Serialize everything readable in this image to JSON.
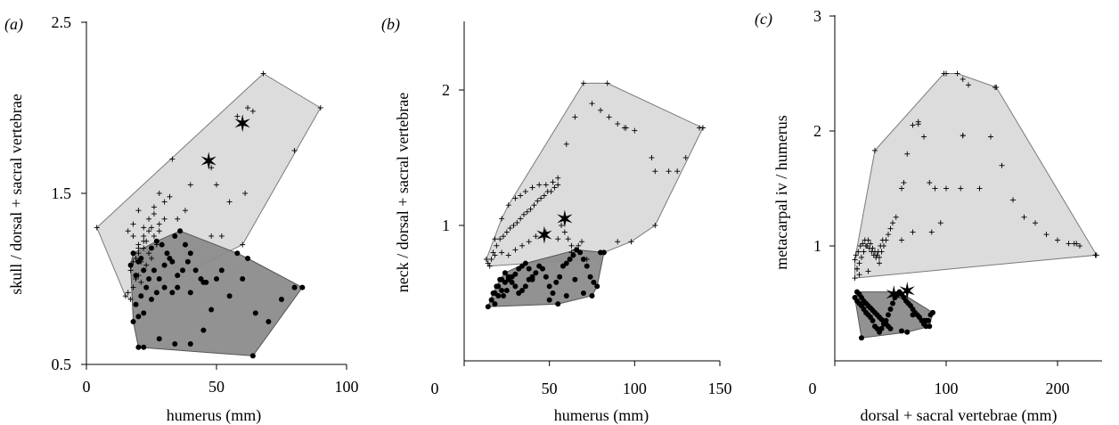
{
  "chart_data": [
    {
      "type": "scatter",
      "panel": "(a)",
      "xlabel": "humerus (mm)",
      "ylabel": "skull / dorsal + sacral vertebrae",
      "xlim": [
        0,
        100
      ],
      "ylim": [
        0.5,
        2.5
      ],
      "xticks": [
        0,
        50,
        100
      ],
      "yticks": [
        0.5,
        1.5,
        2.5
      ],
      "xtick_labels": [
        "0",
        "50",
        "100"
      ],
      "ytick_labels": [
        "0.5",
        "1.5",
        "2.5"
      ],
      "series": [
        {
          "marker": "plus",
          "color": "#000000",
          "hull_color": "#dcdcdc",
          "x": [
            4,
            68,
            90,
            80,
            61,
            60,
            52,
            48,
            40,
            33,
            20,
            18,
            16,
            18,
            20,
            22,
            24,
            26,
            28,
            22,
            24,
            26,
            30,
            32,
            28,
            26,
            22,
            20,
            18,
            17,
            19,
            21,
            23,
            25,
            27,
            24,
            22,
            20,
            18,
            16,
            15,
            17,
            19,
            21,
            23,
            20,
            22,
            25,
            28,
            30,
            35,
            38,
            55,
            58,
            62,
            64,
            48,
            50
          ],
          "y": [
            1.3,
            2.2,
            2.0,
            1.75,
            1.5,
            1.2,
            1.25,
            1.65,
            1.55,
            1.7,
            1.4,
            1.32,
            1.28,
            1.25,
            1.2,
            1.3,
            1.35,
            1.42,
            1.5,
            1.22,
            1.28,
            1.38,
            1.45,
            1.48,
            1.32,
            1.25,
            1.18,
            1.15,
            1.1,
            1.05,
            1.0,
            0.98,
            1.08,
            1.12,
            1.2,
            1.15,
            1.05,
            1.02,
            0.95,
            0.92,
            0.9,
            0.88,
            1.12,
            1.1,
            1.22,
            1.18,
            1.25,
            1.3,
            1.28,
            1.35,
            1.35,
            1.4,
            1.45,
            1.95,
            2.0,
            1.98,
            1.25,
            1.55
          ]
        },
        {
          "marker": "dot",
          "color": "#000000",
          "hull_color": "#8c8c8c",
          "x": [
            18,
            20,
            22,
            19,
            21,
            23,
            25,
            27,
            24,
            22,
            20,
            18,
            17,
            19,
            21,
            26,
            28,
            30,
            32,
            34,
            36,
            38,
            40,
            42,
            44,
            46,
            30,
            33,
            35,
            37,
            39,
            25,
            27,
            29,
            31,
            33,
            35,
            40,
            45,
            50,
            55,
            60,
            65,
            70,
            75,
            80,
            83,
            62,
            58,
            52,
            45,
            40,
            34,
            28,
            22,
            20,
            64,
            48
          ],
          "y": [
            0.75,
            0.78,
            0.8,
            0.85,
            0.9,
            0.95,
            0.88,
            0.92,
            1.0,
            1.05,
            1.1,
            1.15,
            1.08,
            1.02,
            1.12,
            1.05,
            1.0,
            1.08,
            1.12,
            1.25,
            1.28,
            1.2,
            1.15,
            1.05,
            1.0,
            0.98,
            0.95,
            0.92,
            1.02,
            1.05,
            1.1,
            1.18,
            1.22,
            1.2,
            1.15,
            1.1,
            0.95,
            0.92,
            0.98,
            1.0,
            0.9,
            1.0,
            0.8,
            0.75,
            0.88,
            0.95,
            0.95,
            1.12,
            1.15,
            1.05,
            0.7,
            0.62,
            0.62,
            0.65,
            0.6,
            0.6,
            0.55,
            0.82
          ]
        },
        {
          "marker": "star",
          "color": "#000000",
          "x": [
            47,
            60
          ],
          "y": [
            1.69,
            1.91
          ]
        }
      ]
    },
    {
      "type": "scatter",
      "panel": "(b)",
      "xlabel": "humerus (mm)",
      "ylabel": "neck / dorsal + sacral vertebrae",
      "xlim": [
        0,
        150
      ],
      "ylim": [
        0,
        2.5
      ],
      "xticks": [
        0,
        50,
        100,
        150
      ],
      "yticks": [
        1,
        2
      ],
      "xtick_labels": [
        "0",
        "50",
        "100",
        "150"
      ],
      "ytick_labels": [
        "1",
        "2"
      ],
      "series": [
        {
          "marker": "plus",
          "color": "#000000",
          "hull_color": "#dcdcdc",
          "x": [
            13,
            18,
            22,
            26,
            30,
            33,
            36,
            40,
            44,
            48,
            52,
            55,
            60,
            65,
            70,
            75,
            80,
            85,
            90,
            95,
            100,
            110,
            120,
            130,
            138,
            140,
            125,
            112,
            90,
            82,
            72,
            63,
            55,
            48,
            42,
            38,
            34,
            30,
            26,
            22,
            18,
            16,
            14,
            15,
            17,
            19,
            21,
            23,
            25,
            27,
            29,
            31,
            33,
            35,
            37,
            39,
            41,
            43,
            45,
            47,
            49,
            51,
            53,
            55,
            57,
            59,
            61,
            63,
            65,
            67,
            69
          ],
          "y": [
            0.75,
            0.9,
            1.05,
            1.15,
            1.2,
            1.22,
            1.25,
            1.28,
            1.3,
            1.3,
            1.32,
            1.35,
            1.6,
            1.8,
            2.05,
            1.9,
            1.85,
            1.8,
            1.75,
            1.72,
            1.7,
            1.5,
            1.4,
            1.5,
            1.72,
            1.72,
            1.4,
            1.0,
            0.88,
            0.8,
            0.75,
            0.8,
            0.9,
            0.95,
            0.92,
            0.88,
            0.85,
            0.82,
            0.78,
            0.8,
            0.78,
            0.75,
            0.72,
            0.7,
            0.8,
            0.85,
            0.9,
            0.92,
            0.95,
            0.98,
            1.0,
            1.02,
            1.05,
            1.08,
            1.1,
            1.12,
            1.15,
            1.18,
            1.2,
            1.22,
            1.25,
            1.25,
            1.28,
            1.3,
            1.0,
            0.95,
            0.9,
            0.85,
            0.82,
            0.85,
            0.88
          ],
          "labeled_points": [
            [
              84,
              2.05
            ],
            [
              94,
              1.72
            ],
            [
              140,
              1.72
            ],
            [
              112,
              1.4
            ],
            [
              98,
              0.88
            ]
          ]
        },
        {
          "marker": "dot",
          "color": "#000000",
          "hull_color": "#8c8c8c",
          "x": [
            14,
            16,
            18,
            20,
            22,
            24,
            26,
            28,
            30,
            32,
            34,
            36,
            38,
            40,
            42,
            44,
            46,
            48,
            50,
            52,
            54,
            56,
            58,
            60,
            62,
            64,
            66,
            68,
            70,
            72,
            74,
            76,
            78,
            80,
            82,
            18,
            20,
            22,
            24,
            26,
            28,
            30,
            32,
            34,
            36,
            38,
            40,
            17,
            19,
            21,
            23,
            25,
            50,
            55,
            60,
            65,
            70,
            75
          ],
          "y": [
            0.4,
            0.45,
            0.5,
            0.55,
            0.6,
            0.65,
            0.62,
            0.58,
            0.55,
            0.5,
            0.52,
            0.55,
            0.6,
            0.62,
            0.65,
            0.7,
            0.68,
            0.62,
            0.55,
            0.5,
            0.58,
            0.62,
            0.7,
            0.72,
            0.75,
            0.78,
            0.82,
            0.8,
            0.75,
            0.7,
            0.62,
            0.58,
            0.55,
            0.8,
            0.8,
            0.42,
            0.48,
            0.52,
            0.58,
            0.6,
            0.62,
            0.64,
            0.68,
            0.7,
            0.72,
            0.68,
            0.6,
            0.5,
            0.55,
            0.6,
            0.48,
            0.52,
            0.45,
            0.42,
            0.48,
            0.6,
            0.5,
            0.48
          ]
        },
        {
          "marker": "star",
          "color": "#000000",
          "x": [
            47,
            59
          ],
          "y": [
            0.93,
            1.05
          ]
        }
      ]
    },
    {
      "type": "scatter",
      "panel": "(c)",
      "xlabel": "dorsal + sacral vertebrae (mm)",
      "ylabel": "metacarpal iv / humerus",
      "xlim": [
        0,
        240
      ],
      "ylim": [
        0,
        3
      ],
      "xticks": [
        0,
        100,
        200
      ],
      "yticks": [
        1,
        2,
        3
      ],
      "xtick_labels": [
        "0",
        "100",
        "200"
      ],
      "ytick_labels": [
        "1",
        "2",
        "3"
      ],
      "series": [
        {
          "marker": "plus",
          "color": "#000000",
          "hull_color": "#dcdcdc",
          "x": [
            18,
            20,
            22,
            24,
            26,
            28,
            30,
            32,
            34,
            36,
            38,
            40,
            42,
            44,
            46,
            48,
            50,
            52,
            55,
            60,
            65,
            70,
            75,
            80,
            85,
            90,
            95,
            100,
            110,
            115,
            120,
            130,
            140,
            150,
            160,
            170,
            180,
            190,
            200,
            210,
            215,
            235,
            220,
            145,
            115,
            100,
            70,
            60,
            40,
            30,
            22,
            20,
            18,
            19,
            21,
            23,
            25,
            27,
            29,
            31,
            33,
            35,
            37,
            39,
            41,
            43
          ],
          "y": [
            0.72,
            0.8,
            0.85,
            0.9,
            0.95,
            1.0,
            1.05,
            1.02,
            0.98,
            0.95,
            0.92,
            0.9,
            0.95,
            1.0,
            1.05,
            1.1,
            1.15,
            1.2,
            1.25,
            1.5,
            1.8,
            2.05,
            2.08,
            1.95,
            1.55,
            1.5,
            1.2,
            2.5,
            2.5,
            2.45,
            2.4,
            1.5,
            1.95,
            1.7,
            1.4,
            1.25,
            1.2,
            1.1,
            1.05,
            1.02,
            1.02,
            0.92,
            1.0,
            2.38,
            1.96,
            1.5,
            1.12,
            1.05,
            0.85,
            0.78,
            0.75,
            0.8,
            0.88,
            0.92,
            0.95,
            1.0,
            1.02,
            1.05,
            1.0,
            0.98,
            0.95,
            0.92,
            0.9,
            0.95,
            1.0,
            1.05
          ],
          "labeled_points": [
            [
              98,
              2.5
            ],
            [
              144,
              2.38
            ],
            [
              115,
              1.96
            ],
            [
              113,
              1.5
            ],
            [
              217,
              1.02
            ],
            [
              234,
              0.92
            ],
            [
              75,
              2.06
            ],
            [
              36,
              1.83
            ],
            [
              62,
              1.55
            ],
            [
              87,
              1.12
            ]
          ]
        },
        {
          "marker": "dot",
          "color": "#000000",
          "hull_color": "#8c8c8c",
          "x": [
            18,
            20,
            22,
            24,
            26,
            28,
            30,
            32,
            34,
            36,
            38,
            40,
            42,
            44,
            46,
            48,
            50,
            52,
            54,
            56,
            58,
            60,
            62,
            64,
            66,
            68,
            70,
            72,
            74,
            76,
            78,
            80,
            82,
            84,
            86,
            88,
            20,
            22,
            24,
            26,
            28,
            30,
            32,
            34,
            36,
            38,
            40,
            42,
            44,
            46,
            48,
            50,
            60,
            70,
            80,
            85
          ],
          "y": [
            0.55,
            0.52,
            0.5,
            0.48,
            0.45,
            0.42,
            0.4,
            0.38,
            0.35,
            0.3,
            0.28,
            0.25,
            0.28,
            0.32,
            0.35,
            0.4,
            0.45,
            0.5,
            0.55,
            0.58,
            0.6,
            0.58,
            0.55,
            0.52,
            0.5,
            0.48,
            0.45,
            0.42,
            0.4,
            0.38,
            0.35,
            0.32,
            0.3,
            0.35,
            0.4,
            0.42,
            0.6,
            0.58,
            0.55,
            0.52,
            0.5,
            0.48,
            0.46,
            0.44,
            0.42,
            0.4,
            0.38,
            0.36,
            0.34,
            0.32,
            0.3,
            0.28,
            0.26,
            0.4,
            0.35,
            0.3
          ],
          "extra_points": [
            [
              24,
              0.2
            ],
            [
              65,
              0.25
            ],
            [
              82,
              0.35
            ]
          ]
        },
        {
          "marker": "star",
          "color": "#000000",
          "x": [
            53,
            65
          ],
          "y": [
            0.58,
            0.61
          ]
        }
      ]
    }
  ]
}
